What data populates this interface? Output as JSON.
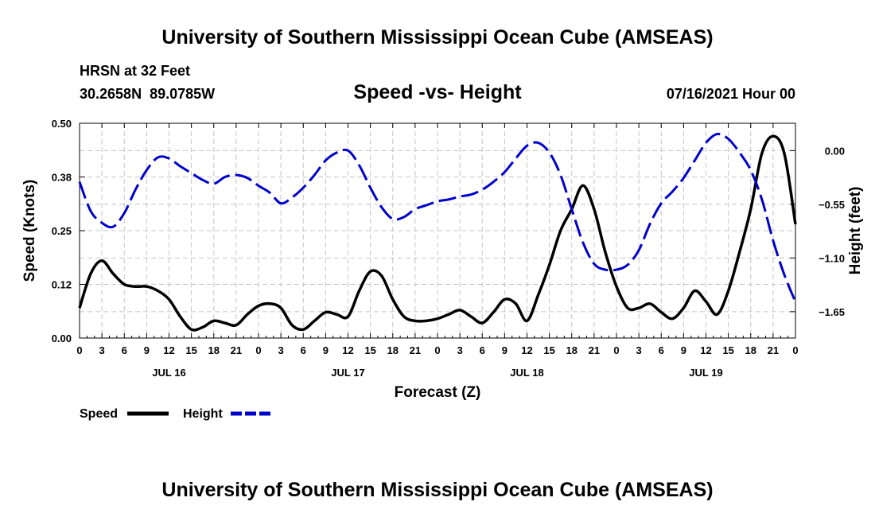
{
  "chart_data": {
    "type": "line",
    "title": "University of Southern Mississippi Ocean Cube (AMSEAS)",
    "footer_title": "University of Southern Mississippi Ocean Cube (AMSEAS)",
    "station": "HRSN at 32 Feet",
    "coordinates": "30.2658N  89.0785W",
    "subtitle": "Speed -vs- Height",
    "timestamp": "07/16/2021 Hour 00",
    "xlabel": "Forecast (Z)",
    "ylabel_left": "Speed (Knots)",
    "ylabel_right": "Height (feet)",
    "xlim": [
      0,
      96
    ],
    "ylim_left": [
      0.0,
      0.5
    ],
    "ylim_right": [
      -1.92,
      0.28
    ],
    "x_tick_labels": [
      "0",
      "3",
      "6",
      "9",
      "12",
      "15",
      "18",
      "21",
      "0",
      "3",
      "6",
      "9",
      "12",
      "15",
      "18",
      "21",
      "0",
      "3",
      "6",
      "9",
      "12",
      "15",
      "18",
      "21",
      "0",
      "3",
      "6",
      "9",
      "12",
      "15",
      "18",
      "21",
      "0"
    ],
    "day_labels": [
      {
        "label": "JUL 16",
        "x": 12
      },
      {
        "label": "JUL 17",
        "x": 36
      },
      {
        "label": "JUL 18",
        "x": 60
      },
      {
        "label": "JUL 19",
        "x": 84
      }
    ],
    "left_ticks": [
      {
        "value": 0.0,
        "label": "0.00"
      },
      {
        "value": 0.125,
        "label": "0.12"
      },
      {
        "value": 0.25,
        "label": "0.25"
      },
      {
        "value": 0.375,
        "label": "0.38"
      },
      {
        "value": 0.5,
        "label": "0.50"
      }
    ],
    "right_ticks": [
      {
        "value": 0.0,
        "label": "0.00"
      },
      {
        "value": -0.55,
        "label": "−0.55"
      },
      {
        "value": -1.1,
        "label": "−1.10"
      },
      {
        "value": -1.65,
        "label": "−1.65"
      }
    ],
    "series": [
      {
        "name": "Speed",
        "axis": "left",
        "color": "#000000",
        "style": "solid",
        "x": [
          0,
          1.5,
          3,
          4.5,
          6,
          7.5,
          9,
          10.5,
          12,
          13.5,
          15,
          16.5,
          18,
          19.5,
          21,
          22.5,
          24,
          25.5,
          27,
          28.5,
          30,
          31.5,
          33,
          34.5,
          36,
          37.5,
          39,
          40.5,
          42,
          43.5,
          45,
          46.5,
          48,
          49.5,
          51,
          52.5,
          54,
          55.5,
          57,
          58.5,
          60,
          61.5,
          63,
          64.5,
          66,
          67.5,
          69,
          70.5,
          72,
          73.5,
          75,
          76.5,
          78,
          79.5,
          81,
          82.5,
          84,
          85.5,
          87,
          88.5,
          90,
          91.5,
          93,
          94.5,
          96
        ],
        "values": [
          0.07,
          0.15,
          0.18,
          0.15,
          0.125,
          0.12,
          0.12,
          0.11,
          0.09,
          0.05,
          0.02,
          0.025,
          0.04,
          0.035,
          0.03,
          0.055,
          0.075,
          0.08,
          0.07,
          0.03,
          0.02,
          0.04,
          0.06,
          0.055,
          0.05,
          0.11,
          0.155,
          0.145,
          0.09,
          0.05,
          0.04,
          0.04,
          0.045,
          0.055,
          0.065,
          0.05,
          0.035,
          0.06,
          0.09,
          0.08,
          0.04,
          0.1,
          0.17,
          0.25,
          0.3,
          0.355,
          0.3,
          0.2,
          0.12,
          0.07,
          0.07,
          0.08,
          0.06,
          0.045,
          0.07,
          0.11,
          0.085,
          0.055,
          0.11,
          0.2,
          0.3,
          0.43,
          0.47,
          0.43,
          0.265
        ]
      },
      {
        "name": "Height",
        "axis": "right",
        "color": "#0000cc",
        "style": "dashed",
        "x": [
          0,
          1.5,
          3,
          4.5,
          6,
          7.5,
          9,
          10.5,
          12,
          13.5,
          15,
          16.5,
          18,
          19.5,
          21,
          22.5,
          24,
          25.5,
          27,
          28.5,
          30,
          31.5,
          33,
          34.5,
          36,
          37.5,
          39,
          40.5,
          42,
          43.5,
          45,
          46.5,
          48,
          49.5,
          51,
          52.5,
          54,
          55.5,
          57,
          58.5,
          60,
          61.5,
          63,
          64.5,
          66,
          67.5,
          69,
          70.5,
          72,
          73.5,
          75,
          76.5,
          78,
          79.5,
          81,
          82.5,
          84,
          85.5,
          87,
          88.5,
          90,
          91.5,
          93,
          94.5,
          96
        ],
        "values": [
          -0.32,
          -0.62,
          -0.74,
          -0.78,
          -0.64,
          -0.4,
          -0.2,
          -0.07,
          -0.08,
          -0.16,
          -0.23,
          -0.3,
          -0.34,
          -0.27,
          -0.25,
          -0.28,
          -0.36,
          -0.43,
          -0.54,
          -0.48,
          -0.38,
          -0.25,
          -0.1,
          -0.02,
          0.0,
          -0.15,
          -0.38,
          -0.58,
          -0.7,
          -0.68,
          -0.6,
          -0.56,
          -0.52,
          -0.5,
          -0.47,
          -0.45,
          -0.4,
          -0.32,
          -0.22,
          -0.08,
          0.05,
          0.08,
          -0.02,
          -0.25,
          -0.6,
          -0.94,
          -1.16,
          -1.22,
          -1.22,
          -1.17,
          -1.02,
          -0.75,
          -0.54,
          -0.42,
          -0.28,
          -0.1,
          0.08,
          0.17,
          0.12,
          -0.02,
          -0.2,
          -0.5,
          -0.92,
          -1.27,
          -1.55
        ]
      }
    ],
    "legend": [
      {
        "label": "Speed",
        "color": "#000000",
        "style": "solid"
      },
      {
        "label": "Height",
        "color": "#0000cc",
        "style": "dashed"
      }
    ]
  }
}
